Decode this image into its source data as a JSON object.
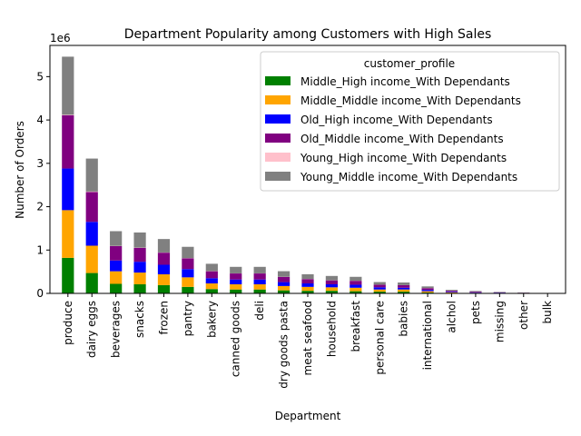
{
  "chart_data": {
    "type": "bar",
    "stacked": true,
    "title": "Department Popularity among Customers with High Sales",
    "xlabel": "Department",
    "ylabel": "Number of Orders",
    "y_offset_text": "1e6",
    "ylim": [
      0,
      5.72
    ],
    "y_ticks": [
      0,
      1,
      2,
      3,
      4,
      5
    ],
    "grid": false,
    "legend_placement": "top-right",
    "legend_title": "customer_profile",
    "categories": [
      "produce",
      "dairy eggs",
      "beverages",
      "snacks",
      "frozen",
      "pantry",
      "bakery",
      "canned goods",
      "deli",
      "dry goods pasta",
      "meat seafood",
      "household",
      "breakfast",
      "personal care",
      "babies",
      "international",
      "alchol",
      "pets",
      "missing",
      "other",
      "bulk"
    ],
    "series": [
      {
        "name": "Middle_High income_With Dependants",
        "color": "#008000",
        "values": [
          0.82,
          0.47,
          0.22,
          0.21,
          0.19,
          0.15,
          0.1,
          0.09,
          0.09,
          0.07,
          0.06,
          0.06,
          0.05,
          0.04,
          0.04,
          0.02,
          0.01,
          0.005,
          0.005,
          0.003,
          0.002
        ]
      },
      {
        "name": "Middle_Middle income_With Dependants",
        "color": "#ffa500",
        "values": [
          1.1,
          0.63,
          0.29,
          0.27,
          0.25,
          0.22,
          0.13,
          0.12,
          0.12,
          0.1,
          0.09,
          0.08,
          0.08,
          0.05,
          0.05,
          0.03,
          0.015,
          0.01,
          0.007,
          0.004,
          0.002
        ]
      },
      {
        "name": "Old_High income_With Dependants",
        "color": "#0000ff",
        "values": [
          0.96,
          0.55,
          0.25,
          0.25,
          0.22,
          0.19,
          0.12,
          0.11,
          0.11,
          0.09,
          0.08,
          0.07,
          0.07,
          0.05,
          0.04,
          0.03,
          0.015,
          0.01,
          0.006,
          0.004,
          0.002
        ]
      },
      {
        "name": "Old_Middle income_With Dependants",
        "color": "#800080",
        "values": [
          1.23,
          0.69,
          0.33,
          0.32,
          0.28,
          0.25,
          0.16,
          0.14,
          0.14,
          0.12,
          0.1,
          0.09,
          0.09,
          0.06,
          0.06,
          0.04,
          0.02,
          0.015,
          0.008,
          0.005,
          0.002
        ]
      },
      {
        "name": "Young_High income_With Dependants",
        "color": "#ffc0cb",
        "values": [
          0.01,
          0.01,
          0.005,
          0.005,
          0.004,
          0.004,
          0.003,
          0.002,
          0.002,
          0.002,
          0.002,
          0.002,
          0.002,
          0.001,
          0.001,
          0.001,
          0.001,
          0.0005,
          0.0003,
          0.0002,
          0.0001
        ]
      },
      {
        "name": "Young_Middle income_With Dependants",
        "color": "#808080",
        "values": [
          1.34,
          0.76,
          0.34,
          0.35,
          0.31,
          0.26,
          0.17,
          0.15,
          0.15,
          0.13,
          0.11,
          0.1,
          0.09,
          0.06,
          0.06,
          0.04,
          0.02,
          0.015,
          0.008,
          0.005,
          0.002
        ]
      }
    ]
  }
}
